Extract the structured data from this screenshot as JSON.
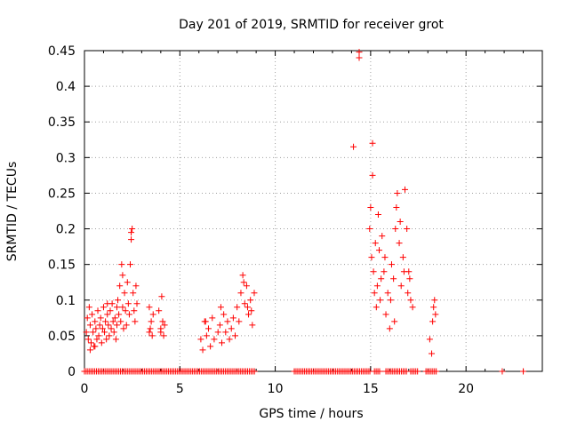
{
  "chart_data": {
    "type": "scatter",
    "title": "Day 201 of 2019, SRMTID for receiver grot",
    "xlabel": "GPS time / hours",
    "ylabel": "SRMTID / TECUs",
    "xlim": [
      0,
      24
    ],
    "ylim": [
      0,
      0.45
    ],
    "xticks": [
      0,
      5,
      10,
      15,
      20
    ],
    "yticks": [
      0,
      0.05,
      0.1,
      0.15,
      0.2,
      0.25,
      0.3,
      0.35,
      0.4,
      0.45
    ],
    "xtick_labels": [
      "0",
      "5",
      "10",
      "15",
      "20"
    ],
    "ytick_labels": [
      "0",
      "0.05",
      "0.1",
      "0.15",
      "0.2",
      "0.25",
      "0.3",
      "0.35",
      "0.4",
      "0.45"
    ],
    "grid": true,
    "marker": "+",
    "color": "#ff0000",
    "series": [
      {
        "points": [
          [
            0.1,
            0.055
          ],
          [
            0.15,
            0.075
          ],
          [
            0.2,
            0.045
          ],
          [
            0.25,
            0.09
          ],
          [
            0.3,
            0.065
          ],
          [
            0.35,
            0.04
          ],
          [
            0.4,
            0.08
          ],
          [
            0.45,
            0.055
          ],
          [
            0.5,
            0.035
          ],
          [
            0.55,
            0.07
          ],
          [
            0.6,
            0.06
          ],
          [
            0.65,
            0.045
          ],
          [
            0.7,
            0.085
          ],
          [
            0.75,
            0.05
          ],
          [
            0.8,
            0.065
          ],
          [
            0.85,
            0.075
          ],
          [
            0.9,
            0.04
          ],
          [
            0.95,
            0.06
          ],
          [
            1.0,
            0.09
          ],
          [
            1.05,
            0.055
          ],
          [
            1.1,
            0.07
          ],
          [
            1.15,
            0.045
          ],
          [
            1.2,
            0.08
          ],
          [
            1.25,
            0.065
          ],
          [
            1.3,
            0.05
          ],
          [
            1.35,
            0.085
          ],
          [
            1.4,
            0.06
          ],
          [
            1.45,
            0.095
          ],
          [
            1.5,
            0.07
          ],
          [
            1.55,
            0.055
          ],
          [
            1.6,
            0.075
          ],
          [
            1.65,
            0.045
          ],
          [
            1.7,
            0.065
          ],
          [
            1.75,
            0.1
          ],
          [
            1.8,
            0.08
          ],
          [
            1.85,
            0.12
          ],
          [
            1.9,
            0.07
          ],
          [
            1.95,
            0.15
          ],
          [
            2.0,
            0.09
          ],
          [
            2.05,
            0.06
          ],
          [
            2.1,
            0.11
          ],
          [
            2.15,
            0.085
          ],
          [
            2.2,
            0.065
          ],
          [
            2.25,
            0.125
          ],
          [
            2.3,
            0.095
          ],
          [
            2.35,
            0.08
          ],
          [
            2.4,
            0.15
          ],
          [
            2.45,
            0.195
          ],
          [
            2.5,
            0.2
          ],
          [
            2.55,
            0.11
          ],
          [
            2.6,
            0.085
          ],
          [
            2.65,
            0.07
          ],
          [
            2.7,
            0.12
          ],
          [
            2.75,
            0.095
          ],
          [
            0.3,
            0.03
          ],
          [
            0.55,
            0.035
          ],
          [
            1.2,
            0.095
          ],
          [
            2.0,
            0.135
          ],
          [
            2.45,
            0.185
          ],
          [
            1.7,
            0.09
          ],
          [
            3.4,
            0.09
          ],
          [
            3.5,
            0.07
          ],
          [
            3.6,
            0.08
          ],
          [
            3.45,
            0.06
          ],
          [
            3.55,
            0.05
          ],
          [
            3.4,
            0.055
          ],
          [
            3.9,
            0.085
          ],
          [
            4.0,
            0.06
          ],
          [
            4.05,
            0.105
          ],
          [
            4.1,
            0.07
          ],
          [
            4.15,
            0.05
          ],
          [
            4.2,
            0.065
          ],
          [
            4.0,
            0.055
          ],
          [
            6.1,
            0.045
          ],
          [
            6.2,
            0.03
          ],
          [
            6.3,
            0.07
          ],
          [
            6.4,
            0.05
          ],
          [
            6.5,
            0.06
          ],
          [
            6.6,
            0.035
          ],
          [
            6.7,
            0.075
          ],
          [
            6.8,
            0.045
          ],
          [
            7.0,
            0.055
          ],
          [
            7.1,
            0.065
          ],
          [
            7.2,
            0.04
          ],
          [
            7.3,
            0.08
          ],
          [
            7.4,
            0.055
          ],
          [
            7.5,
            0.07
          ],
          [
            7.6,
            0.045
          ],
          [
            7.7,
            0.06
          ],
          [
            7.8,
            0.075
          ],
          [
            7.9,
            0.05
          ],
          [
            8.0,
            0.09
          ],
          [
            8.1,
            0.07
          ],
          [
            8.2,
            0.11
          ],
          [
            8.3,
            0.135
          ],
          [
            8.4,
            0.095
          ],
          [
            8.5,
            0.12
          ],
          [
            8.6,
            0.08
          ],
          [
            8.7,
            0.1
          ],
          [
            8.8,
            0.065
          ],
          [
            8.9,
            0.11
          ],
          [
            8.35,
            0.125
          ],
          [
            8.55,
            0.09
          ],
          [
            8.75,
            0.085
          ],
          [
            7.15,
            0.09
          ],
          [
            6.35,
            0.07
          ],
          [
            14.1,
            0.315
          ],
          [
            14.4,
            0.44
          ],
          [
            14.4,
            0.448
          ],
          [
            14.95,
            0.2
          ],
          [
            15.0,
            0.23
          ],
          [
            15.05,
            0.16
          ],
          [
            15.1,
            0.32
          ],
          [
            15.1,
            0.275
          ],
          [
            15.15,
            0.14
          ],
          [
            15.2,
            0.11
          ],
          [
            15.25,
            0.18
          ],
          [
            15.3,
            0.09
          ],
          [
            15.35,
            0.12
          ],
          [
            15.4,
            0.22
          ],
          [
            15.45,
            0.17
          ],
          [
            15.5,
            0.1
          ],
          [
            15.6,
            0.19
          ],
          [
            15.7,
            0.14
          ],
          [
            15.8,
            0.08
          ],
          [
            15.9,
            0.11
          ],
          [
            16.0,
            0.06
          ],
          [
            16.1,
            0.15
          ],
          [
            16.2,
            0.13
          ],
          [
            16.3,
            0.2
          ],
          [
            16.4,
            0.25
          ],
          [
            16.5,
            0.18
          ],
          [
            16.6,
            0.12
          ],
          [
            16.7,
            0.16
          ],
          [
            16.8,
            0.255
          ],
          [
            16.9,
            0.2
          ],
          [
            17.0,
            0.14
          ],
          [
            17.1,
            0.1
          ],
          [
            17.2,
            0.09
          ],
          [
            16.35,
            0.23
          ],
          [
            16.55,
            0.21
          ],
          [
            16.75,
            0.14
          ],
          [
            16.95,
            0.11
          ],
          [
            17.05,
            0.13
          ],
          [
            15.55,
            0.13
          ],
          [
            15.75,
            0.16
          ],
          [
            16.05,
            0.1
          ],
          [
            16.25,
            0.07
          ],
          [
            18.1,
            0.045
          ],
          [
            18.2,
            0.025
          ],
          [
            18.25,
            0.07
          ],
          [
            18.3,
            0.09
          ],
          [
            18.35,
            0.1
          ],
          [
            18.4,
            0.08
          ]
        ]
      }
    ],
    "zero_ranges": [
      [
        0.0,
        8.95
      ],
      [
        11.0,
        15.0
      ],
      [
        15.2,
        15.5
      ],
      [
        15.8,
        16.9
      ],
      [
        17.1,
        17.5
      ],
      [
        17.9,
        18.5
      ]
    ],
    "zero_points": [
      21.9,
      23.0
    ]
  }
}
